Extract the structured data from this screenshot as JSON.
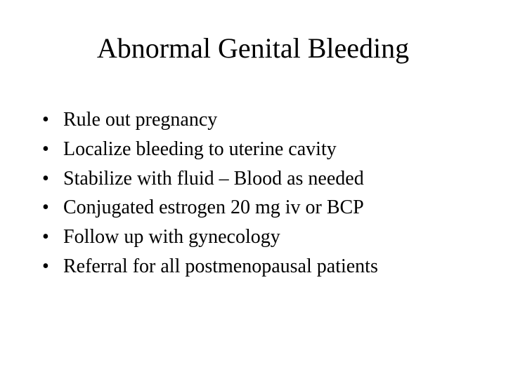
{
  "slide": {
    "title": "Abnormal Genital Bleeding",
    "title_fontsize": 40,
    "body_fontsize": 28,
    "font_family": "Times New Roman",
    "background_color": "#ffffff",
    "text_color": "#000000",
    "bullets": [
      "Rule out pregnancy",
      "Localize bleeding to uterine cavity",
      "Stabilize with fluid – Blood as needed",
      "Conjugated estrogen 20 mg iv or BCP",
      "Follow up with gynecology",
      "Referral for all postmenopausal patients"
    ],
    "bullet_char": "•"
  }
}
